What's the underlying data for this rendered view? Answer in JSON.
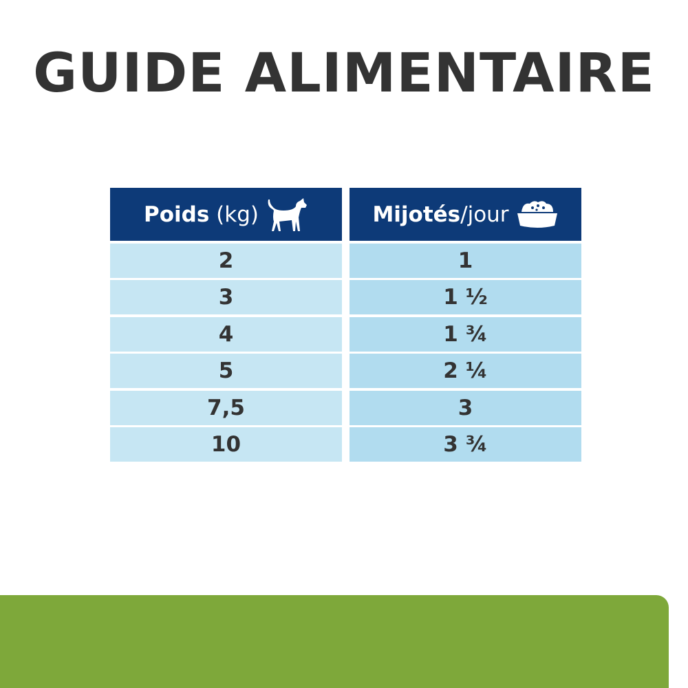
{
  "title": "GUIDE ALIMENTAIRE",
  "table": {
    "col1_header_bold": "Poids",
    "col1_header_light": "(kg)",
    "col1_icon": "dog-icon",
    "col2_header_bold": "Mijotés",
    "col2_header_light": "/jour",
    "col2_icon": "food-bowl-icon",
    "rows": [
      {
        "weight": "2",
        "amount": "1"
      },
      {
        "weight": "3",
        "amount": "1 ½"
      },
      {
        "weight": "4",
        "amount": "1 ¾"
      },
      {
        "weight": "5",
        "amount": "2 ¼"
      },
      {
        "weight": "7,5",
        "amount": "3"
      },
      {
        "weight": "10",
        "amount": "3 ¾"
      }
    ]
  },
  "colors": {
    "header": "#0d3a78",
    "accent_green": "#7ea83a",
    "cell_left": "#c6e6f3",
    "cell_right": "#b1dcef"
  }
}
